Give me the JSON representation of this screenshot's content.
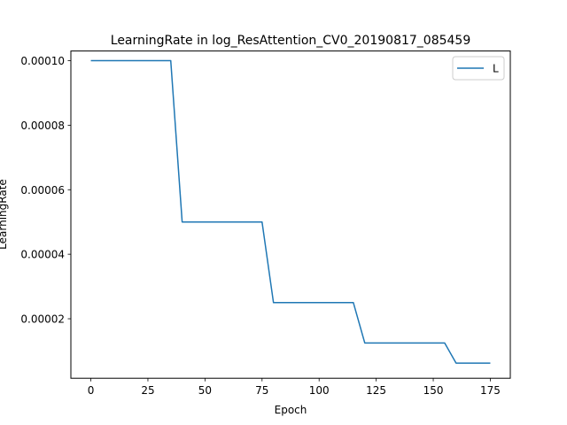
{
  "chart_data": {
    "type": "line",
    "title": "LearningRate in log_ResAttention_CV0_20190817_085459",
    "xlabel": "Epoch",
    "ylabel": "LearningRate",
    "xlim": [
      -8.75,
      183.75
    ],
    "ylim": [
      1.5625e-06,
      0.000103
    ],
    "xticks": [
      0,
      25,
      50,
      75,
      100,
      125,
      150,
      175
    ],
    "xtick_labels": [
      "0",
      "25",
      "50",
      "75",
      "100",
      "125",
      "150",
      "175"
    ],
    "yticks": [
      2e-05,
      4e-05,
      6e-05,
      8e-05,
      0.0001
    ],
    "ytick_labels": [
      "0.00002",
      "0.00004",
      "0.00006",
      "0.00008",
      "0.00010"
    ],
    "grid": false,
    "legend": {
      "position": "top-right"
    },
    "series": [
      {
        "name": "L",
        "color": "#1f77b4",
        "x": [
          0,
          35,
          40,
          75,
          80,
          115,
          120,
          155,
          160,
          175
        ],
        "y": [
          0.0001,
          0.0001,
          5e-05,
          5e-05,
          2.5e-05,
          2.5e-05,
          1.25e-05,
          1.25e-05,
          6.25e-06,
          6.25e-06
        ]
      }
    ]
  }
}
